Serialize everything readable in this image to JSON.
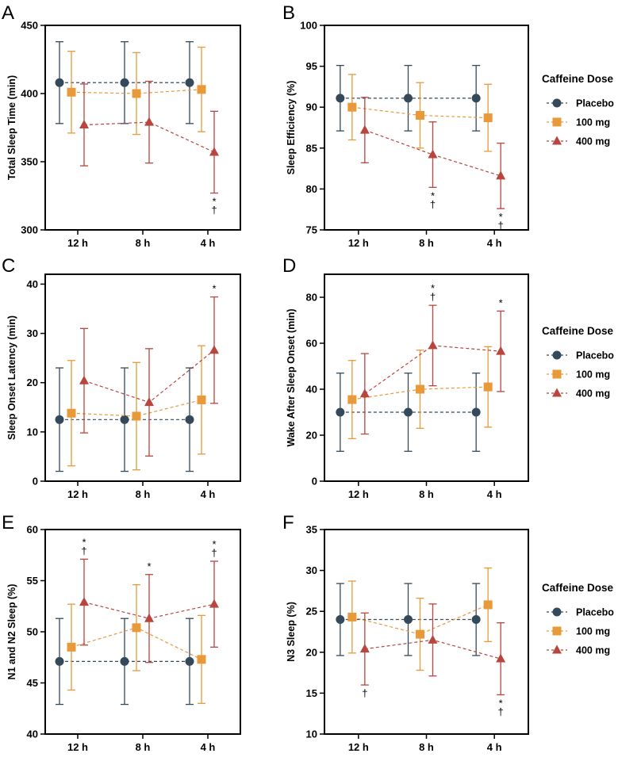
{
  "colors": {
    "placebo": "#34495a",
    "mg100": "#e8993a",
    "mg400": "#b8453e"
  },
  "legend": {
    "title": "Caffeine Dose",
    "entries": [
      {
        "name": "Placebo",
        "color": "#34495a",
        "marker": "circle"
      },
      {
        "name": "100 mg",
        "color": "#e8993a",
        "marker": "square"
      },
      {
        "name": "400 mg",
        "color": "#b8453e",
        "marker": "triangle"
      }
    ]
  },
  "chart_data": [
    {
      "panel": "A",
      "type": "line",
      "ylabel": "Total Sleep Time (min)",
      "categories": [
        "12 h",
        "8 h",
        "4 h"
      ],
      "ylim": [
        300,
        450
      ],
      "yticks": [
        300,
        350,
        400,
        450
      ],
      "series": [
        {
          "name": "Placebo",
          "values": [
            408,
            408,
            408
          ],
          "err": [
            30,
            30,
            30
          ]
        },
        {
          "name": "100 mg",
          "values": [
            401,
            400,
            403
          ],
          "err": [
            30,
            30,
            31
          ]
        },
        {
          "name": "400 mg",
          "values": [
            377,
            379,
            357
          ],
          "err": [
            30,
            30,
            30
          ]
        }
      ],
      "annotations": [
        {
          "category": "4 h",
          "series": "400 mg",
          "text": "*\n†",
          "position": "below"
        }
      ]
    },
    {
      "panel": "B",
      "type": "line",
      "ylabel": "Sleep Efficiency (%)",
      "categories": [
        "12 h",
        "8 h",
        "4 h"
      ],
      "ylim": [
        75,
        100
      ],
      "yticks": [
        75,
        80,
        85,
        90,
        95,
        100
      ],
      "series": [
        {
          "name": "Placebo",
          "values": [
            91.1,
            91.1,
            91.1
          ],
          "err": [
            4,
            4,
            4
          ]
        },
        {
          "name": "100 mg",
          "values": [
            90,
            89,
            88.7
          ],
          "err": [
            4,
            4,
            4.1
          ]
        },
        {
          "name": "400 mg",
          "values": [
            87.2,
            84.2,
            81.6
          ],
          "err": [
            4,
            4,
            4
          ]
        }
      ],
      "annotations": [
        {
          "category": "8 h",
          "series": "400 mg",
          "text": "*\n†",
          "position": "below"
        },
        {
          "category": "4 h",
          "series": "400 mg",
          "text": "*\n†",
          "position": "below"
        }
      ]
    },
    {
      "panel": "C",
      "type": "line",
      "ylabel": "Sleep Onset Latency (min)",
      "categories": [
        "12 h",
        "8 h",
        "4 h"
      ],
      "ylim": [
        0,
        42
      ],
      "yticks": [
        0,
        10,
        20,
        30,
        40
      ],
      "series": [
        {
          "name": "Placebo",
          "values": [
            12.5,
            12.5,
            12.5
          ],
          "err": [
            10.5,
            10.5,
            10.5
          ]
        },
        {
          "name": "100 mg",
          "values": [
            13.8,
            13.2,
            16.5
          ],
          "err": [
            10.7,
            10.9,
            11
          ]
        },
        {
          "name": "400 mg",
          "values": [
            20.4,
            16,
            26.6
          ],
          "err": [
            10.6,
            10.9,
            10.8
          ]
        }
      ],
      "annotations": [
        {
          "category": "4 h",
          "series": "400 mg",
          "text": "*",
          "position": "above"
        }
      ]
    },
    {
      "panel": "D",
      "type": "line",
      "ylabel": "Wake After Sleep Onset (min)",
      "categories": [
        "12 h",
        "8 h",
        "4 h"
      ],
      "ylim": [
        0,
        90
      ],
      "yticks": [
        0,
        20,
        40,
        60,
        80
      ],
      "series": [
        {
          "name": "Placebo",
          "values": [
            30,
            30,
            30
          ],
          "err": [
            17,
            17,
            17
          ]
        },
        {
          "name": "100 mg",
          "values": [
            35.5,
            40,
            41
          ],
          "err": [
            17,
            17,
            17.5
          ]
        },
        {
          "name": "400 mg",
          "values": [
            38,
            59,
            56.5
          ],
          "err": [
            17.5,
            17.5,
            17.5
          ]
        }
      ],
      "annotations": [
        {
          "category": "8 h",
          "series": "400 mg",
          "text": "*\n†",
          "position": "above"
        },
        {
          "category": "4 h",
          "series": "400 mg",
          "text": "*",
          "position": "above"
        }
      ]
    },
    {
      "panel": "E",
      "type": "line",
      "ylabel": "N1 and N2 Sleep (%)",
      "categories": [
        "12 h",
        "8 h",
        "4 h"
      ],
      "ylim": [
        40,
        60
      ],
      "yticks": [
        40,
        45,
        50,
        55,
        60
      ],
      "series": [
        {
          "name": "Placebo",
          "values": [
            47.1,
            47.1,
            47.1
          ],
          "err": [
            4.2,
            4.2,
            4.2
          ]
        },
        {
          "name": "100 mg",
          "values": [
            48.5,
            50.4,
            47.3
          ],
          "err": [
            4.2,
            4.2,
            4.3
          ]
        },
        {
          "name": "400 mg",
          "values": [
            52.9,
            51.3,
            52.7
          ],
          "err": [
            4.2,
            4.3,
            4.2
          ]
        }
      ],
      "annotations": [
        {
          "category": "12 h",
          "series": "400 mg",
          "text": "*\n†",
          "position": "above"
        },
        {
          "category": "8 h",
          "series": "400 mg",
          "text": "*",
          "position": "above"
        },
        {
          "category": "4 h",
          "series": "400 mg",
          "text": "*\n†",
          "position": "above"
        }
      ]
    },
    {
      "panel": "F",
      "type": "line",
      "ylabel": "N3 Sleep (%)",
      "categories": [
        "12 h",
        "8 h",
        "4 h"
      ],
      "ylim": [
        10,
        35
      ],
      "yticks": [
        10,
        15,
        20,
        25,
        30,
        35
      ],
      "series": [
        {
          "name": "Placebo",
          "values": [
            24,
            24,
            24
          ],
          "err": [
            4.4,
            4.4,
            4.4
          ]
        },
        {
          "name": "100 mg",
          "values": [
            24.3,
            22.2,
            25.8
          ],
          "err": [
            4.4,
            4.4,
            4.5
          ]
        },
        {
          "name": "400 mg",
          "values": [
            20.4,
            21.5,
            19.2
          ],
          "err": [
            4.4,
            4.4,
            4.4
          ]
        }
      ],
      "annotations": [
        {
          "category": "12 h",
          "series": "400 mg",
          "text": "†",
          "position": "below"
        },
        {
          "category": "4 h",
          "series": "400 mg",
          "text": "*\n†",
          "position": "below"
        }
      ]
    }
  ]
}
